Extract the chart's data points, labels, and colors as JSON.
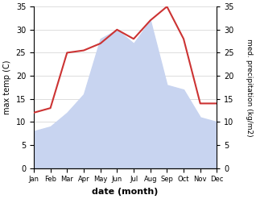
{
  "months": [
    "Jan",
    "Feb",
    "Mar",
    "Apr",
    "May",
    "Jun",
    "Jul",
    "Aug",
    "Sep",
    "Oct",
    "Nov",
    "Dec"
  ],
  "temperature": [
    12,
    13,
    25,
    25.5,
    27,
    30,
    28,
    32,
    35,
    28,
    14,
    14
  ],
  "precipitation": [
    8,
    9,
    12,
    16,
    28,
    30,
    27,
    32,
    18,
    17,
    11,
    10
  ],
  "temp_color": "#cc3333",
  "precip_color_fill": "#c8d4f0",
  "ylim": [
    0,
    35
  ],
  "ylabel_left": "max temp (C)",
  "ylabel_right": "med. precipitation (kg/m2)",
  "xlabel": "date (month)",
  "background_color": "#ffffff",
  "grid_color": "#d0d0d0",
  "yticks": [
    0,
    5,
    10,
    15,
    20,
    25,
    30,
    35
  ]
}
